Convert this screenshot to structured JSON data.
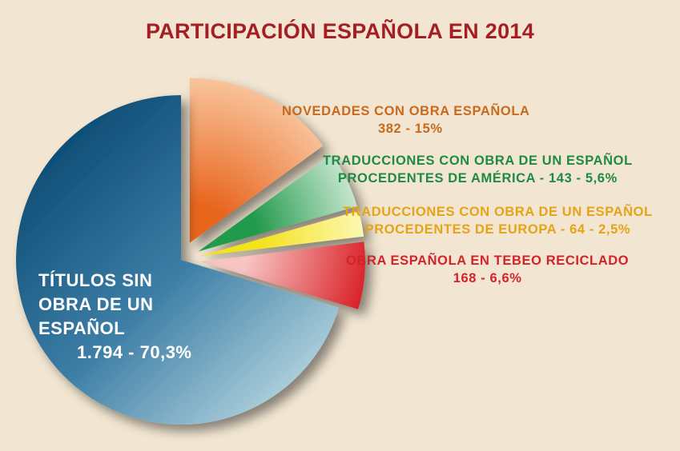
{
  "title": "PARTICIPACIÓN ESPAÑOLA EN 2014",
  "colors": {
    "title": "#a31f24",
    "background": "#f2e6d2"
  },
  "chart_data": {
    "type": "pie",
    "title": "PARTICIPACIÓN ESPAÑOLA EN 2014",
    "slices": [
      {
        "id": "novedades",
        "label_lines": [
          "NOVEDADES CON OBRA ESPAÑOLA",
          "382 - 15%"
        ],
        "value": 382,
        "percent": 15,
        "color": "#ec7a30",
        "label_color": "#c9691c",
        "exploded": true
      },
      {
        "id": "trad-america",
        "label_lines": [
          "TRADUCCIONES CON OBRA DE UN ESPAÑOL",
          "PROCEDENTES DE AMÉRICA - 143 - 5,6%"
        ],
        "value": 143,
        "percent": 5.6,
        "color": "#3aa05a",
        "label_color": "#1f8a43",
        "exploded": true
      },
      {
        "id": "trad-europa",
        "label_lines": [
          "TRADUCCIONES CON OBRA DE UN ESPAÑOL",
          "PROCEDENTES DE EUROPA - 64 - 2,5%"
        ],
        "value": 64,
        "percent": 2.5,
        "color": "#f2df3a",
        "label_color": "#e5a316",
        "exploded": true
      },
      {
        "id": "tebeo",
        "label_lines": [
          "OBRA ESPAÑOLA EN TEBEO RECICLADO",
          "168 - 6,6%"
        ],
        "value": 168,
        "percent": 6.6,
        "color": "#de2a2a",
        "label_color": "#d2232a",
        "exploded": true
      },
      {
        "id": "sin-obra",
        "label_lines": [
          "TÍTULOS SIN",
          "OBRA DE UN",
          "ESPAÑOL",
          "1.794 - 70,3%"
        ],
        "value": 1794,
        "percent": 70.3,
        "color": "#1d5f8a",
        "label_color": "#ffffff",
        "exploded": false
      }
    ]
  }
}
